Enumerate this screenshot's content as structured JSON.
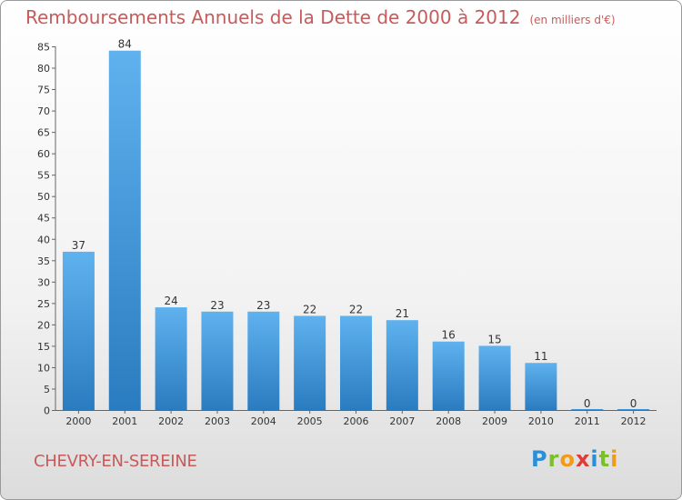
{
  "title": "Remboursements Annuels de la Dette de 2000 à 2012",
  "unit_note": "(en milliers d'€)",
  "commune": "CHEVRY-EN-SEREINE",
  "logo": {
    "text": "Proxiti",
    "letters": [
      {
        "ch": "P",
        "color": "#2a8fd6"
      },
      {
        "ch": "r",
        "color": "#7bbf2a"
      },
      {
        "ch": "o",
        "color": "#f29a1a"
      },
      {
        "ch": "x",
        "color": "#e23b3b"
      },
      {
        "ch": "i",
        "color": "#2a8fd6"
      },
      {
        "ch": "t",
        "color": "#7bbf2a"
      },
      {
        "ch": "i",
        "color": "#f29a1a"
      }
    ]
  },
  "chart_data": {
    "type": "bar",
    "title": "Remboursements Annuels de la Dette de 2000 à 2012",
    "xlabel": "",
    "ylabel": "",
    "categories": [
      "2000",
      "2001",
      "2002",
      "2003",
      "2004",
      "2005",
      "2006",
      "2007",
      "2008",
      "2009",
      "2010",
      "2011",
      "2012"
    ],
    "values": [
      37,
      84,
      24,
      23,
      23,
      22,
      22,
      21,
      16,
      15,
      11,
      0,
      0
    ],
    "ylim": [
      0,
      85
    ],
    "yticks": [
      0,
      5,
      10,
      15,
      20,
      25,
      30,
      35,
      40,
      45,
      50,
      55,
      60,
      65,
      70,
      75,
      80,
      85
    ],
    "grid": false,
    "bar_color": "#3b95d8"
  }
}
